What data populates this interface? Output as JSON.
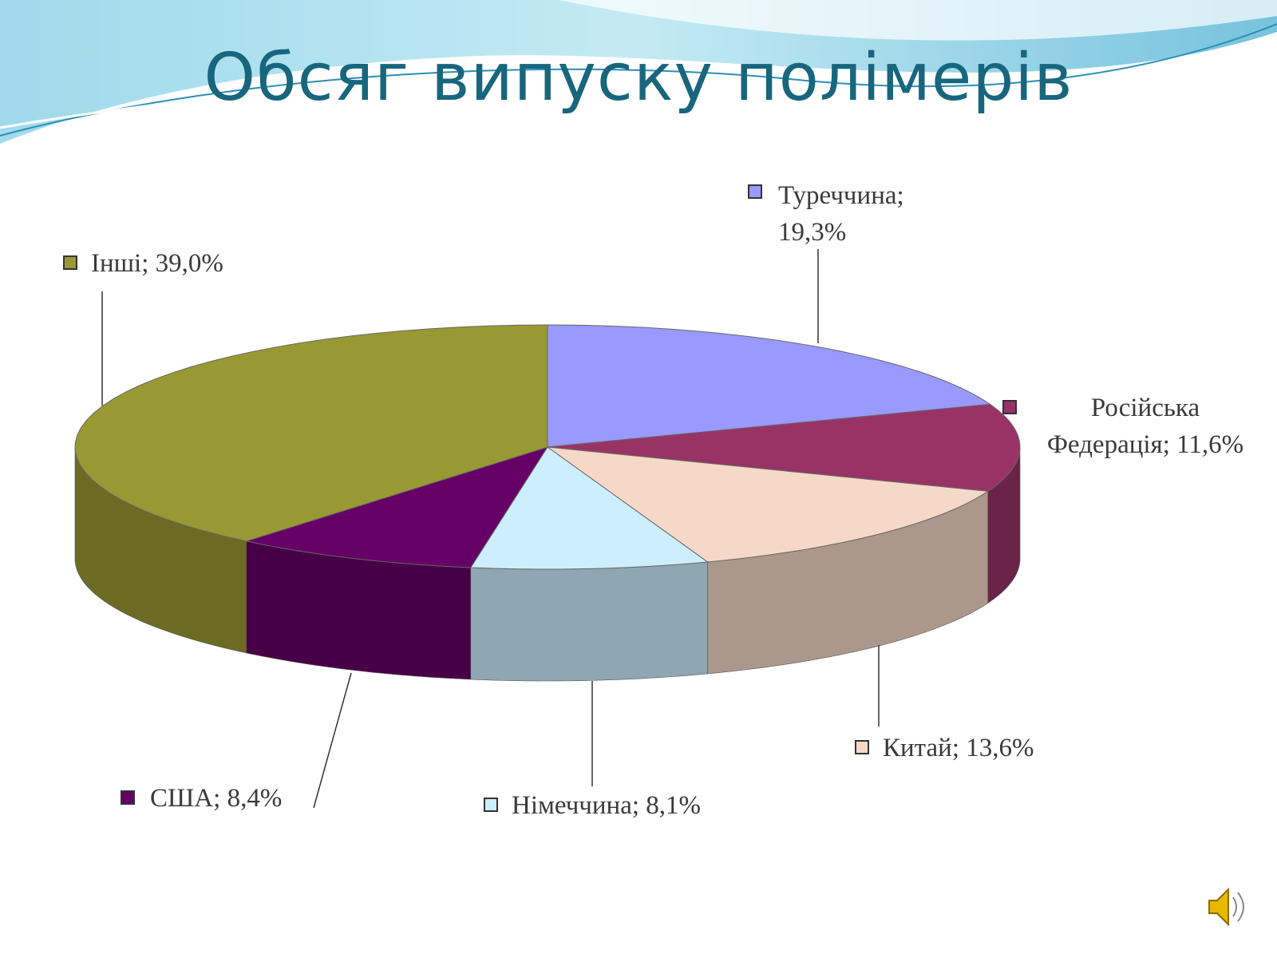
{
  "title": "Обсяг випуску полімерів",
  "chart_data": {
    "type": "pie3d",
    "categories": [
      "Туреччина",
      "Російська Федерація",
      "Китай",
      "Німеччина",
      "США",
      "Інші"
    ],
    "values": [
      19.3,
      11.6,
      13.6,
      8.1,
      8.4,
      39.0
    ],
    "value_labels": [
      "19,3%",
      "11,6%",
      "13,6%",
      "8,1%",
      "8,4%",
      "39,0%"
    ],
    "label_separator": ";",
    "colors": [
      "#9999ff",
      "#993366",
      "#f5d8c8",
      "#cceeff",
      "#660066",
      "#999933"
    ]
  }
}
